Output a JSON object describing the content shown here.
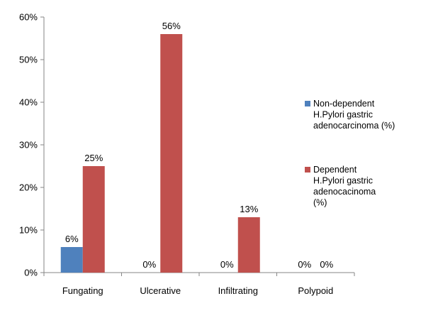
{
  "chart_data": {
    "type": "bar",
    "categories": [
      "Fungating",
      "Ulcerative",
      "Infiltrating",
      "Polypoid"
    ],
    "series": [
      {
        "name": "Non-dependent H.Pylori gastric adenocarcinoma (%)",
        "legend_lines": [
          "Non-dependent",
          "H.Pylori gastric",
          "adenocarcinoma (%)"
        ],
        "color": "#4F81BD",
        "values": [
          6,
          0,
          0,
          0
        ],
        "labels": [
          "6%",
          "0%",
          "0%",
          "0%"
        ]
      },
      {
        "name": "Dependent H.Pylori gastric adenocacinoma (%)",
        "legend_lines": [
          "Dependent",
          "H.Pylori gastric",
          "adenocacinoma",
          "(%)"
        ],
        "color": "#C0504D",
        "values": [
          25,
          56,
          13,
          0
        ],
        "labels": [
          "25%",
          "56%",
          "13%",
          "0%"
        ]
      }
    ],
    "ylim": [
      0,
      60
    ],
    "yticks": [
      0,
      10,
      20,
      30,
      40,
      50,
      60
    ],
    "ytick_labels": [
      "0%",
      "10%",
      "20%",
      "30%",
      "40%",
      "50%",
      "60%"
    ],
    "title": "",
    "xlabel": "",
    "ylabel": "",
    "grid": false,
    "legend_position": "right"
  }
}
